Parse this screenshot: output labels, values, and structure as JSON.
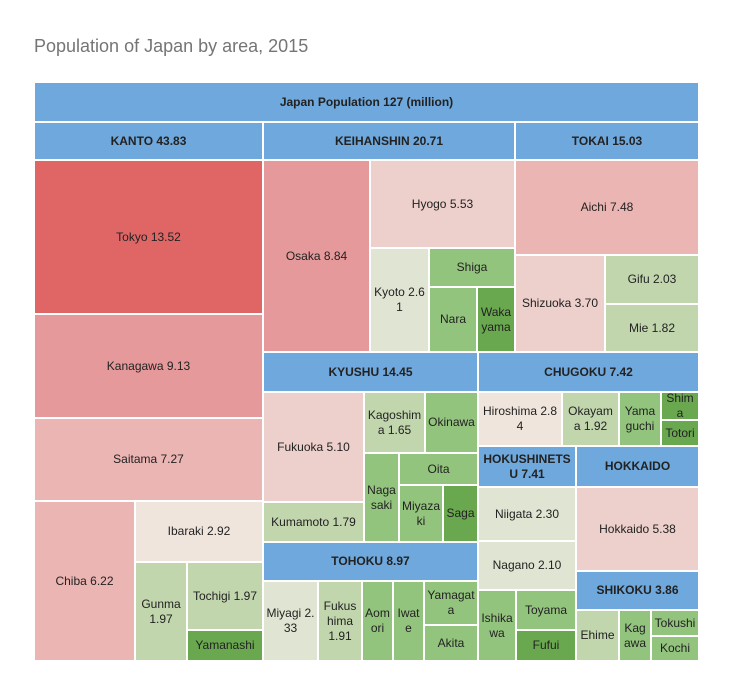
{
  "title": "Population of Japan by area, 2015",
  "colors": {
    "header": "#6fa8dc",
    "red_strong": "#e06666",
    "red_mid": "#e6999a",
    "red_light": "#ebb5b3",
    "pink_light": "#edcfcb",
    "beige": "#efe5dd",
    "pale": "#dfe5d2",
    "green_light": "#c2d6ae",
    "green_mid": "#93c47d",
    "green_dark": "#6aa84f"
  },
  "chart_data": {
    "type": "treemap",
    "title": "Population of Japan by area, 2015",
    "unit": "million",
    "root": {
      "label": "Japan Population 127 (million)",
      "value": 127
    },
    "regions": [
      {
        "name": "KANTO",
        "label": "KANTO 43.83",
        "value": 43.83,
        "prefectures": [
          {
            "name": "Tokyo",
            "label": "Tokyo 13.52",
            "value": 13.52
          },
          {
            "name": "Kanagawa",
            "label": "Kanagawa 9.13",
            "value": 9.13
          },
          {
            "name": "Saitama",
            "label": "Saitama 7.27",
            "value": 7.27
          },
          {
            "name": "Chiba",
            "label": "Chiba 6.22",
            "value": 6.22
          },
          {
            "name": "Ibaraki",
            "label": "Ibaraki 2.92",
            "value": 2.92
          },
          {
            "name": "Gunma",
            "label": "Gunma 1.97",
            "value": 1.97
          },
          {
            "name": "Tochigi",
            "label": "Tochigi 1.97",
            "value": 1.97
          },
          {
            "name": "Yamanashi",
            "label": "Yamanashi",
            "value": null
          }
        ]
      },
      {
        "name": "KEIHANSHIN",
        "label": "KEIHANSHIN 20.71",
        "value": 20.71,
        "prefectures": [
          {
            "name": "Osaka",
            "label": "Osaka 8.84",
            "value": 8.84
          },
          {
            "name": "Hyogo",
            "label": "Hyogo 5.53",
            "value": 5.53
          },
          {
            "name": "Kyoto",
            "label": "Kyoto 2.61",
            "value": 2.61
          },
          {
            "name": "Shiga",
            "label": "Shiga",
            "value": null
          },
          {
            "name": "Nara",
            "label": "Nara",
            "value": null
          },
          {
            "name": "Wakayama",
            "label": "Wakayama",
            "value": null
          }
        ]
      },
      {
        "name": "TOKAI",
        "label": "TOKAI 15.03",
        "value": 15.03,
        "prefectures": [
          {
            "name": "Aichi",
            "label": "Aichi 7.48",
            "value": 7.48
          },
          {
            "name": "Shizuoka",
            "label": "Shizuoka 3.70",
            "value": 3.7
          },
          {
            "name": "Gifu",
            "label": "Gifu 2.03",
            "value": 2.03
          },
          {
            "name": "Mie",
            "label": "Mie 1.82",
            "value": 1.82
          }
        ]
      },
      {
        "name": "KYUSHU",
        "label": "KYUSHU 14.45",
        "value": 14.45,
        "prefectures": [
          {
            "name": "Fukuoka",
            "label": "Fukuoka 5.10",
            "value": 5.1
          },
          {
            "name": "Kagoshima",
            "label": "Kagoshima 1.65",
            "value": 1.65
          },
          {
            "name": "Okinawa",
            "label": "Okinawa",
            "value": null
          },
          {
            "name": "Oita",
            "label": "Oita",
            "value": null
          },
          {
            "name": "Nagasaki",
            "label": "Nagasaki",
            "value": null
          },
          {
            "name": "Miyazaki",
            "label": "Miyazaki",
            "value": null
          },
          {
            "name": "Saga",
            "label": "Saga",
            "value": null
          },
          {
            "name": "Kumamoto",
            "label": "Kumamoto 1.79",
            "value": 1.79
          }
        ]
      },
      {
        "name": "CHUGOKU",
        "label": "CHUGOKU 7.42",
        "value": 7.42,
        "prefectures": [
          {
            "name": "Hiroshima",
            "label": "Hiroshima 2.84",
            "value": 2.84
          },
          {
            "name": "Okayama",
            "label": "Okayama 1.92",
            "value": 1.92
          },
          {
            "name": "Yamaguchi",
            "label": "Yamaguchi",
            "value": null
          },
          {
            "name": "Shimane",
            "label": "Shima",
            "value": null
          },
          {
            "name": "Tottori",
            "label": "Totori",
            "value": null
          }
        ]
      },
      {
        "name": "HOKUSHINETSU",
        "label": "HOKUSHINETSU 7.41",
        "value": 7.41,
        "prefectures": [
          {
            "name": "Niigata",
            "label": "Niigata 2.30",
            "value": 2.3
          },
          {
            "name": "Nagano",
            "label": "Nagano 2.10",
            "value": 2.1
          },
          {
            "name": "Ishikawa",
            "label": "Ishikawa",
            "value": null
          },
          {
            "name": "Toyama",
            "label": "Toyama",
            "value": null
          },
          {
            "name": "Fukui",
            "label": "Fufui",
            "value": null
          }
        ]
      },
      {
        "name": "HOKKAIDO",
        "label": "HOKKAIDO",
        "value": 5.38,
        "prefectures": [
          {
            "name": "Hokkaido",
            "label": "Hokkaido 5.38",
            "value": 5.38
          }
        ]
      },
      {
        "name": "TOHOKU",
        "label": "TOHOKU 8.97",
        "value": 8.97,
        "prefectures": [
          {
            "name": "Miyagi",
            "label": "Miyagi 2.33",
            "value": 2.33
          },
          {
            "name": "Fukushima",
            "label": "Fukushima 1.91",
            "value": 1.91
          },
          {
            "name": "Aomori",
            "label": "Aomori",
            "value": null
          },
          {
            "name": "Iwate",
            "label": "Iwate",
            "value": null
          },
          {
            "name": "Yamagata",
            "label": "Yamagata",
            "value": null
          },
          {
            "name": "Akita",
            "label": "Akita",
            "value": null
          }
        ]
      },
      {
        "name": "SHIKOKU",
        "label": "SHIKOKU 3.86",
        "value": 3.86,
        "prefectures": [
          {
            "name": "Ehime",
            "label": "Ehime",
            "value": null
          },
          {
            "name": "Kagawa",
            "label": "Kagawa",
            "value": null
          },
          {
            "name": "Tokushima",
            "label": "Tokushi",
            "value": null
          },
          {
            "name": "Kochi",
            "label": "Kochi",
            "value": null
          }
        ]
      }
    ]
  }
}
